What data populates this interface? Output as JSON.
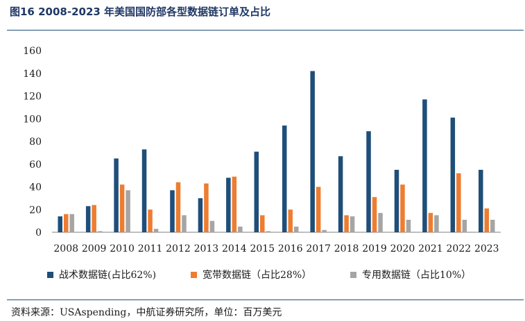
{
  "figure": {
    "title": "图16  2008-2023 年美国国防部各型数据链订单及占比",
    "source": "资料来源：USAspending，中航证券研究所，单位：百万美元"
  },
  "chart_data": {
    "type": "bar",
    "categories": [
      "2008",
      "2009",
      "2010",
      "2011",
      "2012",
      "2013",
      "2014",
      "2015",
      "2016",
      "2017",
      "2018",
      "2019",
      "2020",
      "2021",
      "2022",
      "2023"
    ],
    "ylim": [
      0,
      160
    ],
    "yticks": [
      0,
      20,
      40,
      60,
      80,
      100,
      120,
      140,
      160
    ],
    "grid": false,
    "legend_position": "bottom",
    "series": [
      {
        "name": "战术数据链(占比62%)",
        "color": "#1f4e79",
        "values": [
          14,
          23,
          65,
          73,
          37,
          30,
          48,
          71,
          94,
          142,
          67,
          89,
          55,
          117,
          101,
          55
        ]
      },
      {
        "name": "宽带数据链（占比28%）",
        "color": "#ed7d31",
        "values": [
          16,
          24,
          42,
          20,
          44,
          43,
          49,
          15,
          20,
          40,
          15,
          31,
          42,
          17,
          52,
          21
        ]
      },
      {
        "name": "专用数据链（占比10%）",
        "color": "#a5a5a5",
        "values": [
          16,
          1,
          37,
          3,
          15,
          10,
          5,
          1,
          5,
          2,
          14,
          17,
          11,
          15,
          11,
          11
        ]
      }
    ]
  }
}
